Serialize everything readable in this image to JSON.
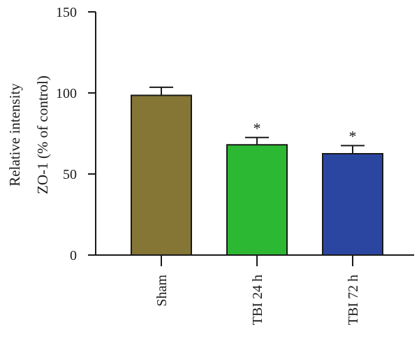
{
  "chart_data": {
    "type": "bar",
    "title": "",
    "xlabel": "",
    "ylabel_lines": [
      "Relative intensity",
      "ZO-1 (% of control)"
    ],
    "ylim": [
      0,
      150
    ],
    "yticks": [
      0,
      50,
      100,
      150
    ],
    "ytick_labels": [
      "0",
      "50",
      "100",
      "150"
    ],
    "grid": false,
    "legend": "none",
    "categories": [
      "Sham",
      "TBI 24 h",
      "TBI 72 h"
    ],
    "values": [
      98.5,
      68,
      62.5
    ],
    "error_upper": [
      103.5,
      72.5,
      67.5
    ],
    "significance": [
      "",
      "*",
      "*"
    ],
    "colors": [
      "#857636",
      "#2db833",
      "#2b46a1"
    ]
  }
}
